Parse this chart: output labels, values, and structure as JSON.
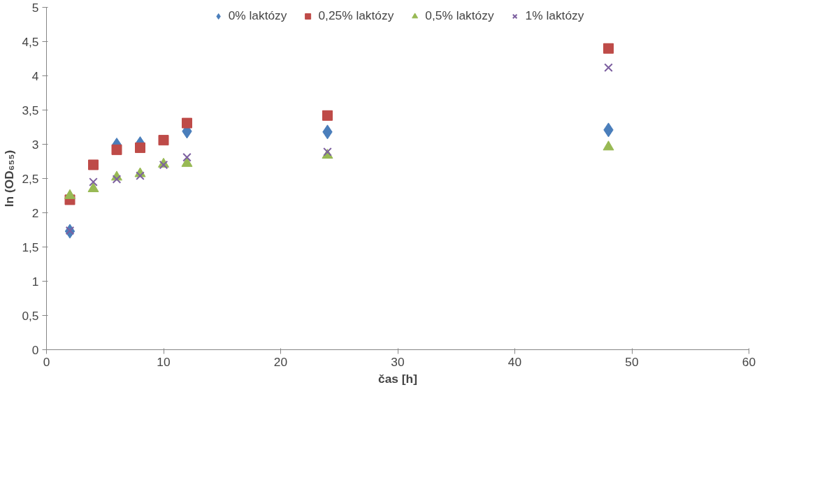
{
  "chart_data": {
    "type": "scatter",
    "xlabel": "čas [h]",
    "ylabel": "ln (OD₆₅₅)",
    "x": [
      2,
      4,
      6,
      8,
      10,
      12,
      24,
      48
    ],
    "xlim": [
      0,
      60
    ],
    "xticks": [
      0,
      10,
      20,
      30,
      40,
      50,
      60
    ],
    "ylim": [
      0,
      5
    ],
    "yticks": [
      {
        "value": 0,
        "label": "0"
      },
      {
        "value": 0.5,
        "label": "0,5"
      },
      {
        "value": 1,
        "label": "1"
      },
      {
        "value": 1.5,
        "label": "1,5"
      },
      {
        "value": 2,
        "label": "2"
      },
      {
        "value": 2.5,
        "label": "2,5"
      },
      {
        "value": 3,
        "label": "3"
      },
      {
        "value": 3.5,
        "label": "3,5"
      },
      {
        "value": 4,
        "label": "4"
      },
      {
        "value": 4.5,
        "label": "4,5"
      },
      {
        "value": 5,
        "label": "5"
      }
    ],
    "grid": false,
    "legend": "top",
    "series": [
      {
        "name": "0% laktózy",
        "color": "#4a7ebb",
        "marker": "diamond",
        "values": [
          1.73,
          null,
          2.99,
          3.01,
          null,
          3.19,
          3.18,
          3.21
        ]
      },
      {
        "name": "0,25% laktózy",
        "color": "#be4b48",
        "marker": "square",
        "values": [
          2.19,
          2.7,
          2.92,
          2.95,
          3.06,
          3.31,
          3.42,
          4.4
        ]
      },
      {
        "name": "0,5% laktózy",
        "color": "#98b954",
        "marker": "triangle",
        "values": [
          2.25,
          2.35,
          2.52,
          2.57,
          2.71,
          2.72,
          2.84,
          2.96
        ]
      },
      {
        "name": "1% laktózy",
        "color": "#7d60a0",
        "marker": "cross",
        "values": [
          1.74,
          2.45,
          2.49,
          2.54,
          2.7,
          2.81,
          2.89,
          4.12
        ]
      }
    ]
  }
}
